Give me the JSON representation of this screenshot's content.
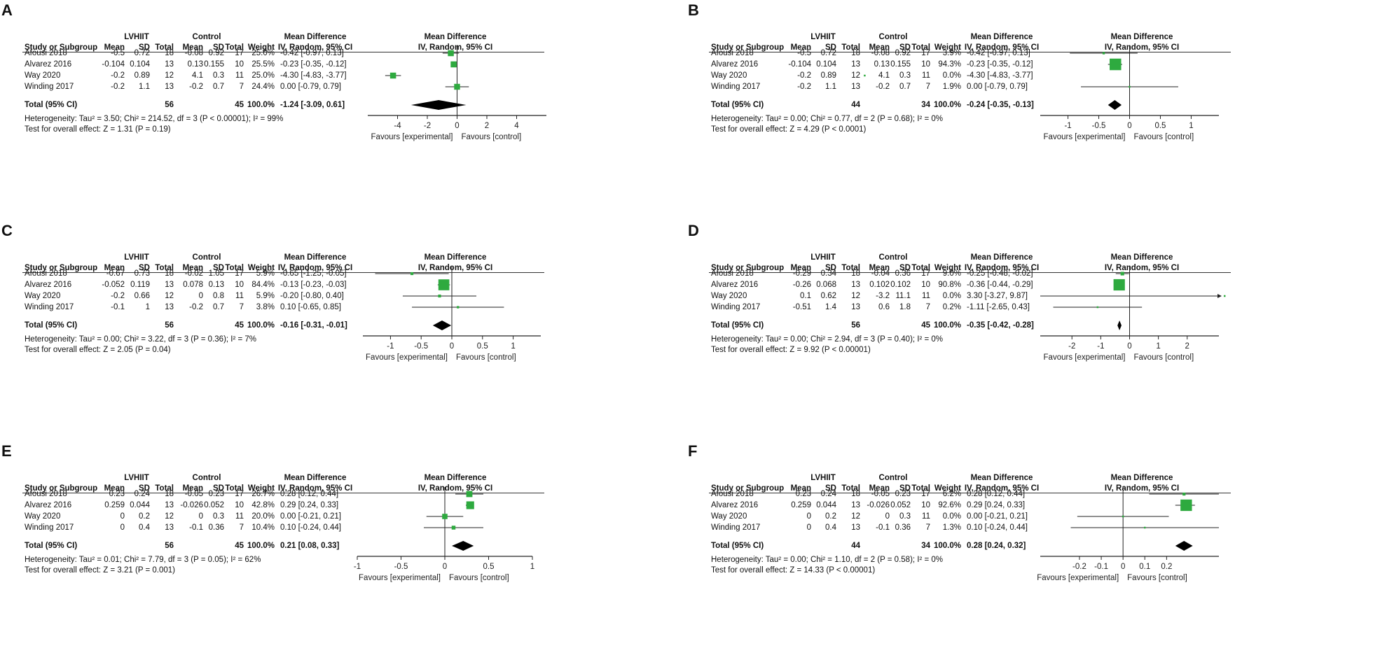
{
  "common": {
    "h_group_exp": "LVHIIT",
    "h_group_ctl": "Control",
    "h_effect": "Mean Difference",
    "h_study": "Study or Subgroup",
    "h_mean": "Mean",
    "h_sd": "SD",
    "h_total": "Total",
    "h_weight": "Weight",
    "h_method": "IV, Random, 95% CI",
    "total_label": "Total (95% CI)",
    "favours_left": "Favours [experimental]",
    "favours_right": "Favours [control]"
  },
  "chart_data": [
    {
      "type": "forest",
      "panel": "A",
      "studies": [
        {
          "name": "Afousi 2018",
          "e_mean": "-0.5",
          "e_sd": "0.72",
          "e_n": "18",
          "c_mean": "-0.08",
          "c_sd": "0.92",
          "c_n": "17",
          "weight": "25.0%",
          "ci_text": "-0.42 [-0.97, 0.13]",
          "md": -0.42,
          "lo": -0.97,
          "hi": 0.13,
          "w": 25.0
        },
        {
          "name": "Alvarez 2016",
          "e_mean": "-0.104",
          "e_sd": "0.104",
          "e_n": "13",
          "c_mean": "0.13",
          "c_sd": "0.155",
          "c_n": "10",
          "weight": "25.5%",
          "ci_text": "-0.23 [-0.35, -0.12]",
          "md": -0.23,
          "lo": -0.35,
          "hi": -0.12,
          "w": 25.5
        },
        {
          "name": "Way 2020",
          "e_mean": "-0.2",
          "e_sd": "0.89",
          "e_n": "12",
          "c_mean": "4.1",
          "c_sd": "0.3",
          "c_n": "11",
          "weight": "25.0%",
          "ci_text": "-4.30 [-4.83, -3.77]",
          "md": -4.3,
          "lo": -4.83,
          "hi": -3.77,
          "w": 25.0
        },
        {
          "name": "Winding 2017",
          "e_mean": "-0.2",
          "e_sd": "1.1",
          "e_n": "13",
          "c_mean": "-0.2",
          "c_sd": "0.7",
          "c_n": "7",
          "weight": "24.4%",
          "ci_text": "0.00 [-0.79, 0.79]",
          "md": 0.0,
          "lo": -0.79,
          "hi": 0.79,
          "w": 24.4
        }
      ],
      "total": {
        "e_n": "56",
        "c_n": "45",
        "weight": "100.0%",
        "ci_text": "-1.24 [-3.09, 0.61]",
        "md": -1.24,
        "lo": -3.09,
        "hi": 0.61
      },
      "heterogeneity": "Heterogeneity: Tau² = 3.50; Chi² = 214.52, df = 3 (P < 0.00001); I² = 99%",
      "overall": "Test for overall effect: Z = 1.31 (P = 0.19)",
      "xlim": [
        -6,
        6
      ],
      "ticks": [
        -4,
        -2,
        0,
        2,
        4
      ],
      "tick_labels": [
        "-4",
        "-2",
        "0",
        "2",
        "4"
      ]
    },
    {
      "type": "forest",
      "panel": "B",
      "studies": [
        {
          "name": "Afousi 2018",
          "e_mean": "-0.5",
          "e_sd": "0.72",
          "e_n": "18",
          "c_mean": "-0.08",
          "c_sd": "0.92",
          "c_n": "17",
          "weight": "3.9%",
          "ci_text": "-0.42 [-0.97, 0.13]",
          "md": -0.42,
          "lo": -0.97,
          "hi": 0.13,
          "w": 3.9
        },
        {
          "name": "Alvarez 2016",
          "e_mean": "-0.104",
          "e_sd": "0.104",
          "e_n": "13",
          "c_mean": "0.13",
          "c_sd": "0.155",
          "c_n": "10",
          "weight": "94.3%",
          "ci_text": "-0.23 [-0.35, -0.12]",
          "md": -0.23,
          "lo": -0.35,
          "hi": -0.12,
          "w": 94.3
        },
        {
          "name": "Way 2020",
          "e_mean": "-0.2",
          "e_sd": "0.89",
          "e_n": "12",
          "c_mean": "4.1",
          "c_sd": "0.3",
          "c_n": "11",
          "weight": "0.0%",
          "ci_text": "-4.30 [-4.83, -3.77]",
          "md": -4.3,
          "lo": -4.83,
          "hi": -3.77,
          "w": 0.0
        },
        {
          "name": "Winding 2017",
          "e_mean": "-0.2",
          "e_sd": "1.1",
          "e_n": "13",
          "c_mean": "-0.2",
          "c_sd": "0.7",
          "c_n": "7",
          "weight": "1.9%",
          "ci_text": "0.00 [-0.79, 0.79]",
          "md": 0.0,
          "lo": -0.79,
          "hi": 0.79,
          "w": 1.9
        }
      ],
      "total": {
        "e_n": "44",
        "c_n": "34",
        "weight": "100.0%",
        "ci_text": "-0.24 [-0.35, -0.13]",
        "md": -0.24,
        "lo": -0.35,
        "hi": -0.13
      },
      "heterogeneity": "Heterogeneity: Tau² = 0.00; Chi² = 0.77, df = 2 (P = 0.68); I² = 0%",
      "overall": "Test for overall effect: Z = 4.29 (P < 0.0001)",
      "xlim": [
        -1.45,
        1.45
      ],
      "ticks": [
        -1,
        -0.5,
        0,
        0.5,
        1
      ],
      "tick_labels": [
        "-1",
        "-0.5",
        "0",
        "0.5",
        "1"
      ]
    },
    {
      "type": "forest",
      "panel": "C",
      "studies": [
        {
          "name": "Afousi 2018",
          "e_mean": "-0.67",
          "e_sd": "0.73",
          "e_n": "18",
          "c_mean": "-0.02",
          "c_sd": "1.05",
          "c_n": "17",
          "weight": "5.9%",
          "ci_text": "-0.65 [-1.25, -0.05]",
          "md": -0.65,
          "lo": -1.25,
          "hi": -0.05,
          "w": 5.9
        },
        {
          "name": "Alvarez 2016",
          "e_mean": "-0.052",
          "e_sd": "0.119",
          "e_n": "13",
          "c_mean": "0.078",
          "c_sd": "0.13",
          "c_n": "10",
          "weight": "84.4%",
          "ci_text": "-0.13 [-0.23, -0.03]",
          "md": -0.13,
          "lo": -0.23,
          "hi": -0.03,
          "w": 84.4
        },
        {
          "name": "Way 2020",
          "e_mean": "-0.2",
          "e_sd": "0.66",
          "e_n": "12",
          "c_mean": "0",
          "c_sd": "0.8",
          "c_n": "11",
          "weight": "5.9%",
          "ci_text": "-0.20 [-0.80, 0.40]",
          "md": -0.2,
          "lo": -0.8,
          "hi": 0.4,
          "w": 5.9
        },
        {
          "name": "Winding 2017",
          "e_mean": "-0.1",
          "e_sd": "1",
          "e_n": "13",
          "c_mean": "-0.2",
          "c_sd": "0.7",
          "c_n": "7",
          "weight": "3.8%",
          "ci_text": "0.10 [-0.65, 0.85]",
          "md": 0.1,
          "lo": -0.65,
          "hi": 0.85,
          "w": 3.8
        }
      ],
      "total": {
        "e_n": "56",
        "c_n": "45",
        "weight": "100.0%",
        "ci_text": "-0.16 [-0.31, -0.01]",
        "md": -0.16,
        "lo": -0.31,
        "hi": -0.01
      },
      "heterogeneity": "Heterogeneity: Tau² = 0.00; Chi² = 3.22, df = 3 (P = 0.36); I² = 7%",
      "overall": "Test for overall effect: Z = 2.05 (P = 0.04)",
      "xlim": [
        -1.45,
        1.45
      ],
      "ticks": [
        -1,
        -0.5,
        0,
        0.5,
        1
      ],
      "tick_labels": [
        "-1",
        "-0.5",
        "0",
        "0.5",
        "1"
      ]
    },
    {
      "type": "forest",
      "panel": "D",
      "studies": [
        {
          "name": "Afousi 2018",
          "e_mean": "-0.29",
          "e_sd": "0.34",
          "e_n": "18",
          "c_mean": "-0.04",
          "c_sd": "0.36",
          "c_n": "17",
          "weight": "9.0%",
          "ci_text": "-0.25 [-0.48, -0.02]",
          "md": -0.25,
          "lo": -0.48,
          "hi": -0.02,
          "w": 9.0
        },
        {
          "name": "Alvarez 2016",
          "e_mean": "-0.26",
          "e_sd": "0.068",
          "e_n": "13",
          "c_mean": "0.102",
          "c_sd": "0.102",
          "c_n": "10",
          "weight": "90.8%",
          "ci_text": "-0.36 [-0.44, -0.29]",
          "md": -0.36,
          "lo": -0.44,
          "hi": -0.29,
          "w": 90.8
        },
        {
          "name": "Way 2020",
          "e_mean": "0.1",
          "e_sd": "0.62",
          "e_n": "12",
          "c_mean": "-3.2",
          "c_sd": "11.1",
          "c_n": "11",
          "weight": "0.0%",
          "ci_text": "3.30 [-3.27, 9.87]",
          "md": 3.3,
          "lo": -3.27,
          "hi": 9.87,
          "w": 0.0
        },
        {
          "name": "Winding 2017",
          "e_mean": "-0.51",
          "e_sd": "1.4",
          "e_n": "13",
          "c_mean": "0.6",
          "c_sd": "1.8",
          "c_n": "7",
          "weight": "0.2%",
          "ci_text": "-1.11 [-2.65, 0.43]",
          "md": -1.11,
          "lo": -2.65,
          "hi": 0.43,
          "w": 0.2
        }
      ],
      "total": {
        "e_n": "56",
        "c_n": "45",
        "weight": "100.0%",
        "ci_text": "-0.35 [-0.42, -0.28]",
        "md": -0.35,
        "lo": -0.42,
        "hi": -0.28
      },
      "heterogeneity": "Heterogeneity: Tau² = 0.00; Chi² = 2.94, df = 3 (P = 0.40); I² = 0%",
      "overall": "Test for overall effect: Z = 9.92 (P < 0.00001)",
      "xlim": [
        -3.1,
        3.1
      ],
      "ticks": [
        -2,
        -1,
        0,
        1,
        2
      ],
      "tick_labels": [
        "-2",
        "-1",
        "0",
        "1",
        "2"
      ]
    },
    {
      "type": "forest",
      "panel": "E",
      "studies": [
        {
          "name": "Afousi 2018",
          "e_mean": "0.23",
          "e_sd": "0.24",
          "e_n": "18",
          "c_mean": "-0.05",
          "c_sd": "0.23",
          "c_n": "17",
          "weight": "26.7%",
          "ci_text": "0.28 [0.12, 0.44]",
          "md": 0.28,
          "lo": 0.12,
          "hi": 0.44,
          "w": 26.7
        },
        {
          "name": "Alvarez 2016",
          "e_mean": "0.259",
          "e_sd": "0.044",
          "e_n": "13",
          "c_mean": "-0.026",
          "c_sd": "0.052",
          "c_n": "10",
          "weight": "42.8%",
          "ci_text": "0.29 [0.24, 0.33]",
          "md": 0.29,
          "lo": 0.24,
          "hi": 0.33,
          "w": 42.8
        },
        {
          "name": "Way 2020",
          "e_mean": "0",
          "e_sd": "0.2",
          "e_n": "12",
          "c_mean": "0",
          "c_sd": "0.3",
          "c_n": "11",
          "weight": "20.0%",
          "ci_text": "0.00 [-0.21, 0.21]",
          "md": 0.0,
          "lo": -0.21,
          "hi": 0.21,
          "w": 20.0
        },
        {
          "name": "Winding 2017",
          "e_mean": "0",
          "e_sd": "0.4",
          "e_n": "13",
          "c_mean": "-0.1",
          "c_sd": "0.36",
          "c_n": "7",
          "weight": "10.4%",
          "ci_text": "0.10 [-0.24, 0.44]",
          "md": 0.1,
          "lo": -0.24,
          "hi": 0.44,
          "w": 10.4
        }
      ],
      "total": {
        "e_n": "56",
        "c_n": "45",
        "weight": "100.0%",
        "ci_text": "0.21 [0.08, 0.33]",
        "md": 0.21,
        "lo": 0.08,
        "hi": 0.33
      },
      "heterogeneity": "Heterogeneity: Tau² = 0.01; Chi² = 7.79, df = 3 (P = 0.05); I² = 62%",
      "overall": "Test for overall effect: Z = 3.21 (P = 0.001)",
      "xlim": [
        -1,
        1
      ],
      "ticks": [
        -1,
        -0.5,
        0,
        0.5,
        1
      ],
      "tick_labels": [
        "-1",
        "-0.5",
        "0",
        "0.5",
        "1"
      ]
    },
    {
      "type": "forest",
      "panel": "F",
      "studies": [
        {
          "name": "Afousi 2018",
          "e_mean": "0.23",
          "e_sd": "0.24",
          "e_n": "18",
          "c_mean": "-0.05",
          "c_sd": "0.23",
          "c_n": "17",
          "weight": "6.2%",
          "ci_text": "0.28 [0.12, 0.44]",
          "md": 0.28,
          "lo": 0.12,
          "hi": 0.44,
          "w": 6.2
        },
        {
          "name": "Alvarez 2016",
          "e_mean": "0.259",
          "e_sd": "0.044",
          "e_n": "13",
          "c_mean": "-0.026",
          "c_sd": "0.052",
          "c_n": "10",
          "weight": "92.6%",
          "ci_text": "0.29 [0.24, 0.33]",
          "md": 0.29,
          "lo": 0.24,
          "hi": 0.33,
          "w": 92.6
        },
        {
          "name": "Way 2020",
          "e_mean": "0",
          "e_sd": "0.2",
          "e_n": "12",
          "c_mean": "0",
          "c_sd": "0.3",
          "c_n": "11",
          "weight": "0.0%",
          "ci_text": "0.00 [-0.21, 0.21]",
          "md": 0.0,
          "lo": -0.21,
          "hi": 0.21,
          "w": 0.0
        },
        {
          "name": "Winding 2017",
          "e_mean": "0",
          "e_sd": "0.4",
          "e_n": "13",
          "c_mean": "-0.1",
          "c_sd": "0.36",
          "c_n": "7",
          "weight": "1.3%",
          "ci_text": "0.10 [-0.24, 0.44]",
          "md": 0.1,
          "lo": -0.24,
          "hi": 0.44,
          "w": 1.3
        }
      ],
      "total": {
        "e_n": "44",
        "c_n": "34",
        "weight": "100.0%",
        "ci_text": "0.28 [0.24, 0.32]",
        "md": 0.28,
        "lo": 0.24,
        "hi": 0.32
      },
      "heterogeneity": "Heterogeneity: Tau² = 0.00; Chi² = 1.10, df = 2 (P = 0.58); I² = 0%",
      "overall": "Test for overall effect: Z = 14.33 (P < 0.00001)",
      "xlim": [
        -0.38,
        0.44
      ],
      "ticks": [
        -0.2,
        -0.1,
        0,
        0.1,
        0.2
      ],
      "tick_labels": [
        "-0.2",
        "-0.1",
        "0",
        "0.1",
        "0.2"
      ]
    }
  ],
  "colors": {
    "marker": "#2eaa3f",
    "diamond": "#000000",
    "line": "#222222"
  }
}
